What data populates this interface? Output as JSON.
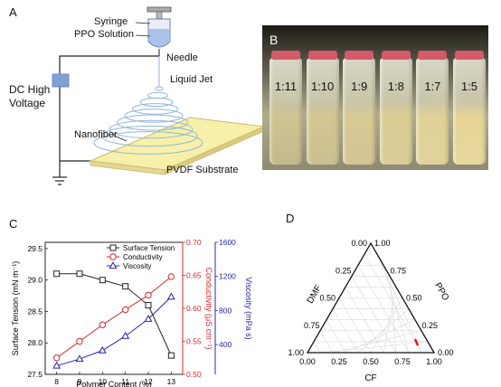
{
  "panels": {
    "a": {
      "label": "A",
      "syringe": "Syringe",
      "ppo_solution": "PPO Solution",
      "needle": "Needle",
      "liquid_jet": "Liquid Jet",
      "dc_high": "DC High",
      "voltage": "Voltage",
      "nanofiber": "Nanofiber",
      "substrate": "PVDF Substrate"
    },
    "b": {
      "label": "B",
      "vials": [
        "1:11",
        "1:10",
        "1:9",
        "1:8",
        "1:7",
        "1:5"
      ]
    },
    "c": {
      "label": "C"
    },
    "d": {
      "label": "D",
      "axis_dmf": "DMF",
      "axis_ppo": "PPO",
      "axis_cf": "CF",
      "left_ticks": [
        "0.00",
        "0.25",
        "0.50",
        "0.75",
        "1.00"
      ],
      "right_ticks": [
        "1.00",
        "0.75",
        "0.50",
        "0.25",
        "0.00"
      ],
      "bottom_ticks": [
        "0.00",
        "0.25",
        "0.50",
        "0.75",
        "1.00"
      ],
      "red_mark_color": "#e8101a"
    }
  },
  "chart_data": [
    {
      "type": "line",
      "x": [
        8,
        9,
        10,
        11,
        12,
        13
      ],
      "xlabel": "Polymer Content (%)",
      "x_ticks": [
        "8",
        "9",
        "10",
        "11",
        "12",
        "13"
      ],
      "xlim": [
        7.5,
        13.5
      ],
      "series": [
        {
          "name": "Surface Tension",
          "axis": "left",
          "color": "#222222",
          "marker": "square",
          "values": [
            29.1,
            29.1,
            29.0,
            28.9,
            28.6,
            27.8
          ]
        },
        {
          "name": "Conductivity",
          "axis": "right1",
          "color": "#d62728",
          "marker": "circle",
          "values": [
            0.525,
            0.55,
            0.575,
            0.598,
            0.62,
            0.648
          ]
        },
        {
          "name": "Viscosity",
          "axis": "right2",
          "color": "#2424b0",
          "marker": "triangle",
          "values": [
            150,
            230,
            330,
            500,
            700,
            960
          ]
        }
      ],
      "y_left": {
        "label": "Surface Tension (mN m⁻¹)",
        "ticks": [
          "27.5",
          "28.0",
          "28.5",
          "29.0",
          "29.5"
        ],
        "ylim": [
          27.5,
          29.6
        ]
      },
      "y_right1": {
        "label": "Conductivity (μS cm⁻¹)",
        "ticks": [
          "0.50",
          "0.55",
          "0.60",
          "0.65",
          "0.70"
        ],
        "ylim": [
          0.5,
          0.7
        ]
      },
      "y_right2": {
        "label": "Viscosity (mPa s)",
        "ticks": [
          "400",
          "800",
          "1200",
          "1600"
        ],
        "ylim": [
          50,
          1600
        ]
      },
      "legend": "top-right",
      "grid": false
    }
  ]
}
